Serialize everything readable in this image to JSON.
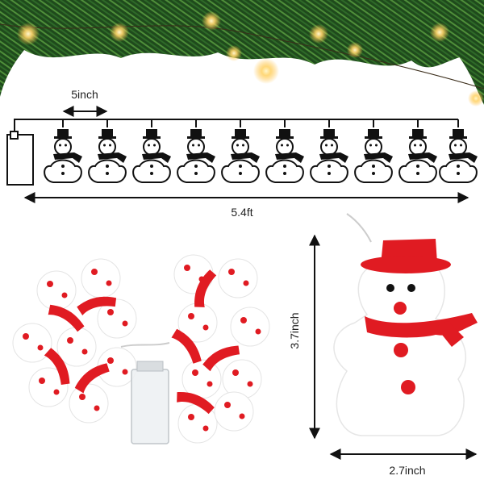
{
  "dimensions": {
    "spacing": "5inch",
    "length": "5.4ft",
    "height": "3.7inch",
    "width": "2.7inch"
  }
}
